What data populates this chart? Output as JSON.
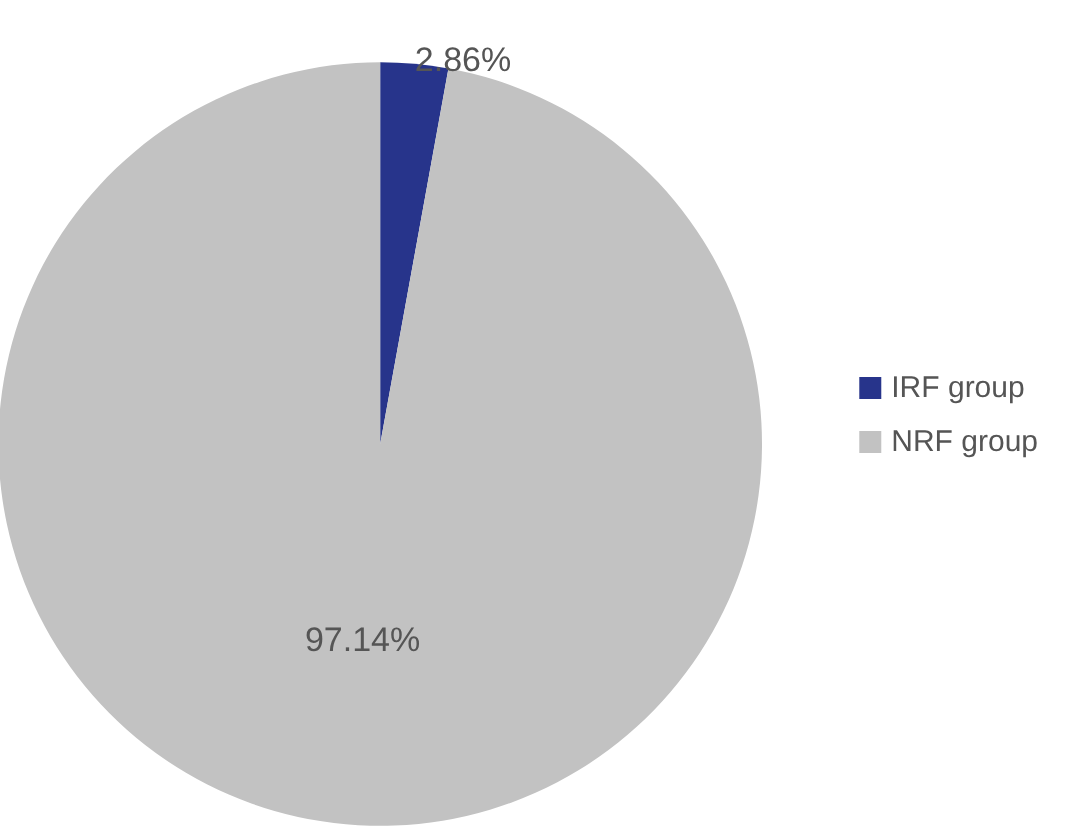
{
  "chart_data": {
    "type": "pie",
    "categories": [
      "IRF group",
      "NRF group"
    ],
    "values": [
      2.86,
      97.14
    ],
    "colors": [
      "#27348b",
      "#c2c2c2"
    ],
    "value_labels": [
      "2.86%",
      "97.14%"
    ],
    "legend": "right"
  }
}
